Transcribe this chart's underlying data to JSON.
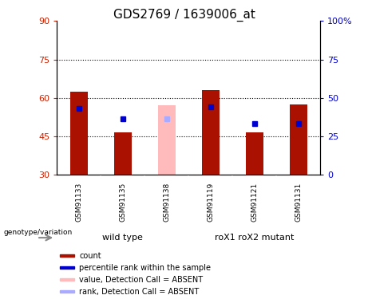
{
  "title": "GDS2769 / 1639006_at",
  "samples": [
    "GSM91133",
    "GSM91135",
    "GSM91138",
    "GSM91119",
    "GSM91121",
    "GSM91131"
  ],
  "bar_values": [
    62.5,
    46.5,
    57.0,
    63.0,
    46.5,
    57.5
  ],
  "rank_values": [
    56.0,
    52.0,
    52.0,
    56.5,
    50.0,
    50.0
  ],
  "absent": [
    false,
    false,
    true,
    false,
    false,
    false
  ],
  "bar_colors_present": "#aa1100",
  "bar_colors_absent": "#ffbbbb",
  "rank_color_present": "#0000cc",
  "rank_color_absent": "#aaaaff",
  "ylim_left": [
    30,
    90
  ],
  "ylim_right": [
    0,
    100
  ],
  "yticks_left": [
    30,
    45,
    60,
    75,
    90
  ],
  "yticks_right": [
    0,
    25,
    50,
    75,
    100
  ],
  "ytick_labels_right": [
    "0",
    "25",
    "50",
    "75",
    "100%"
  ],
  "groups": [
    {
      "label": "wild type",
      "span": [
        0,
        2
      ]
    },
    {
      "label": "roX1 roX2 mutant",
      "span": [
        3,
        5
      ]
    }
  ],
  "group_color": "#55ee55",
  "sample_box_color": "#cccccc",
  "bar_width": 0.4,
  "rank_marker_size": 5,
  "legend_items": [
    {
      "label": "count",
      "color": "#aa1100"
    },
    {
      "label": "percentile rank within the sample",
      "color": "#0000cc"
    },
    {
      "label": "value, Detection Call = ABSENT",
      "color": "#ffbbbb"
    },
    {
      "label": "rank, Detection Call = ABSENT",
      "color": "#aaaaff"
    }
  ],
  "genotype_label": "genotype/variation",
  "plot_bg_color": "#ffffff",
  "outer_bg_color": "#ffffff",
  "title_fontsize": 11
}
